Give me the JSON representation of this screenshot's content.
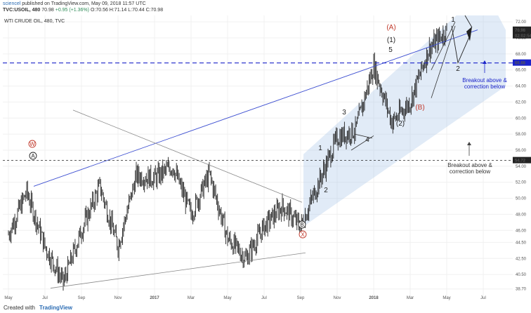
{
  "header": {
    "user": "sciencel",
    "published_text": "published on TradingView.com, May 09, 2018 11:57 UTC",
    "symbol_line": "TVC:USOIL, 480",
    "last": "70.98",
    "change": "+0.95 (+1.36%)",
    "ohlc": "O:70.56 H:71.14 L:70.44 C:70.98"
  },
  "footer": {
    "made_with": "Created with",
    "brand": "TradingView"
  },
  "chart_data": {
    "type": "candlestick",
    "title": "WTI CRUDE OIL, 480, TVC",
    "y_ticks": [
      38.7,
      40.5,
      42.5,
      44.5,
      46.0,
      48.0,
      50.0,
      52.0,
      54.0,
      56.0,
      58.0,
      60.0,
      62.0,
      64.0,
      66.0,
      68.0,
      70.0,
      72.0
    ],
    "x_ticks": [
      "May",
      "Jul",
      "Sep",
      "Nov",
      "2017",
      "Mar",
      "May",
      "Jul",
      "Sep",
      "Nov",
      "2018",
      "Mar",
      "May",
      "Jul"
    ],
    "ylim": [
      37.8,
      72.8
    ],
    "price_path": [
      {
        "t": "2016-05",
        "p": 45.5
      },
      {
        "t": "2016-06",
        "p": 50.8
      },
      {
        "t": "2016-07",
        "p": 44.0
      },
      {
        "t": "2016-08",
        "p": 39.5
      },
      {
        "t": "2016-09",
        "p": 46.0
      },
      {
        "t": "2016-10",
        "p": 51.5
      },
      {
        "t": "2016-11",
        "p": 44.0
      },
      {
        "t": "2016-12",
        "p": 52.8
      },
      {
        "t": "2017-01",
        "p": 52.5
      },
      {
        "t": "2017-02",
        "p": 54.0
      },
      {
        "t": "2017-03",
        "p": 48.0
      },
      {
        "t": "2017-04",
        "p": 53.0
      },
      {
        "t": "2017-05",
        "p": 45.0
      },
      {
        "t": "2017-06",
        "p": 42.5
      },
      {
        "t": "2017-07",
        "p": 46.5
      },
      {
        "t": "2017-08",
        "p": 49.0
      },
      {
        "t": "2017-09",
        "p": 46.5
      },
      {
        "t": "2017-10",
        "p": 52.0
      },
      {
        "t": "2017-11",
        "p": 57.5
      },
      {
        "t": "2017-12",
        "p": 58.5
      },
      {
        "t": "2018-01",
        "p": 66.5
      },
      {
        "t": "2018-02",
        "p": 59.5
      },
      {
        "t": "2018-03",
        "p": 62.0
      },
      {
        "t": "2018-04",
        "p": 68.5
      },
      {
        "t": "2018-05",
        "p": 70.98
      }
    ],
    "price_labels": [
      {
        "value": "70.98",
        "color": "#222222"
      },
      {
        "value": "02:02:54",
        "color": "#222222"
      },
      {
        "value": "66.88",
        "color": "#1a23c9"
      },
      {
        "value": "54.72",
        "color": "#222222"
      }
    ],
    "horizontal_levels": [
      {
        "price": 66.88,
        "color": "#1a23c9",
        "style": "dashed"
      },
      {
        "price": 54.72,
        "color": "#222222",
        "style": "dashed"
      }
    ],
    "wave_labels": {
      "W": "W",
      "A": "A",
      "B": "B",
      "X": "X",
      "waveA_big": "(A)",
      "wave1_big": "(1)",
      "wave5": "5",
      "wave3": "3",
      "wave4": "4",
      "wave1": "1",
      "wave2": "2",
      "wave2_big": "(2)",
      "waveB_big": "(B)",
      "top1": "1",
      "top2": "2"
    },
    "annotations": {
      "breakout1": [
        "Breakout above &",
        "correction below"
      ],
      "breakout2": [
        "Breakout above &",
        "correction below"
      ]
    },
    "colors": {
      "up": "#222222",
      "blue_line": "#3d4fd1",
      "grid": "#f0f0f0",
      "channel": "#a9c6e8",
      "red": "#c0392b",
      "note_blue": "#1a23c9"
    }
  }
}
